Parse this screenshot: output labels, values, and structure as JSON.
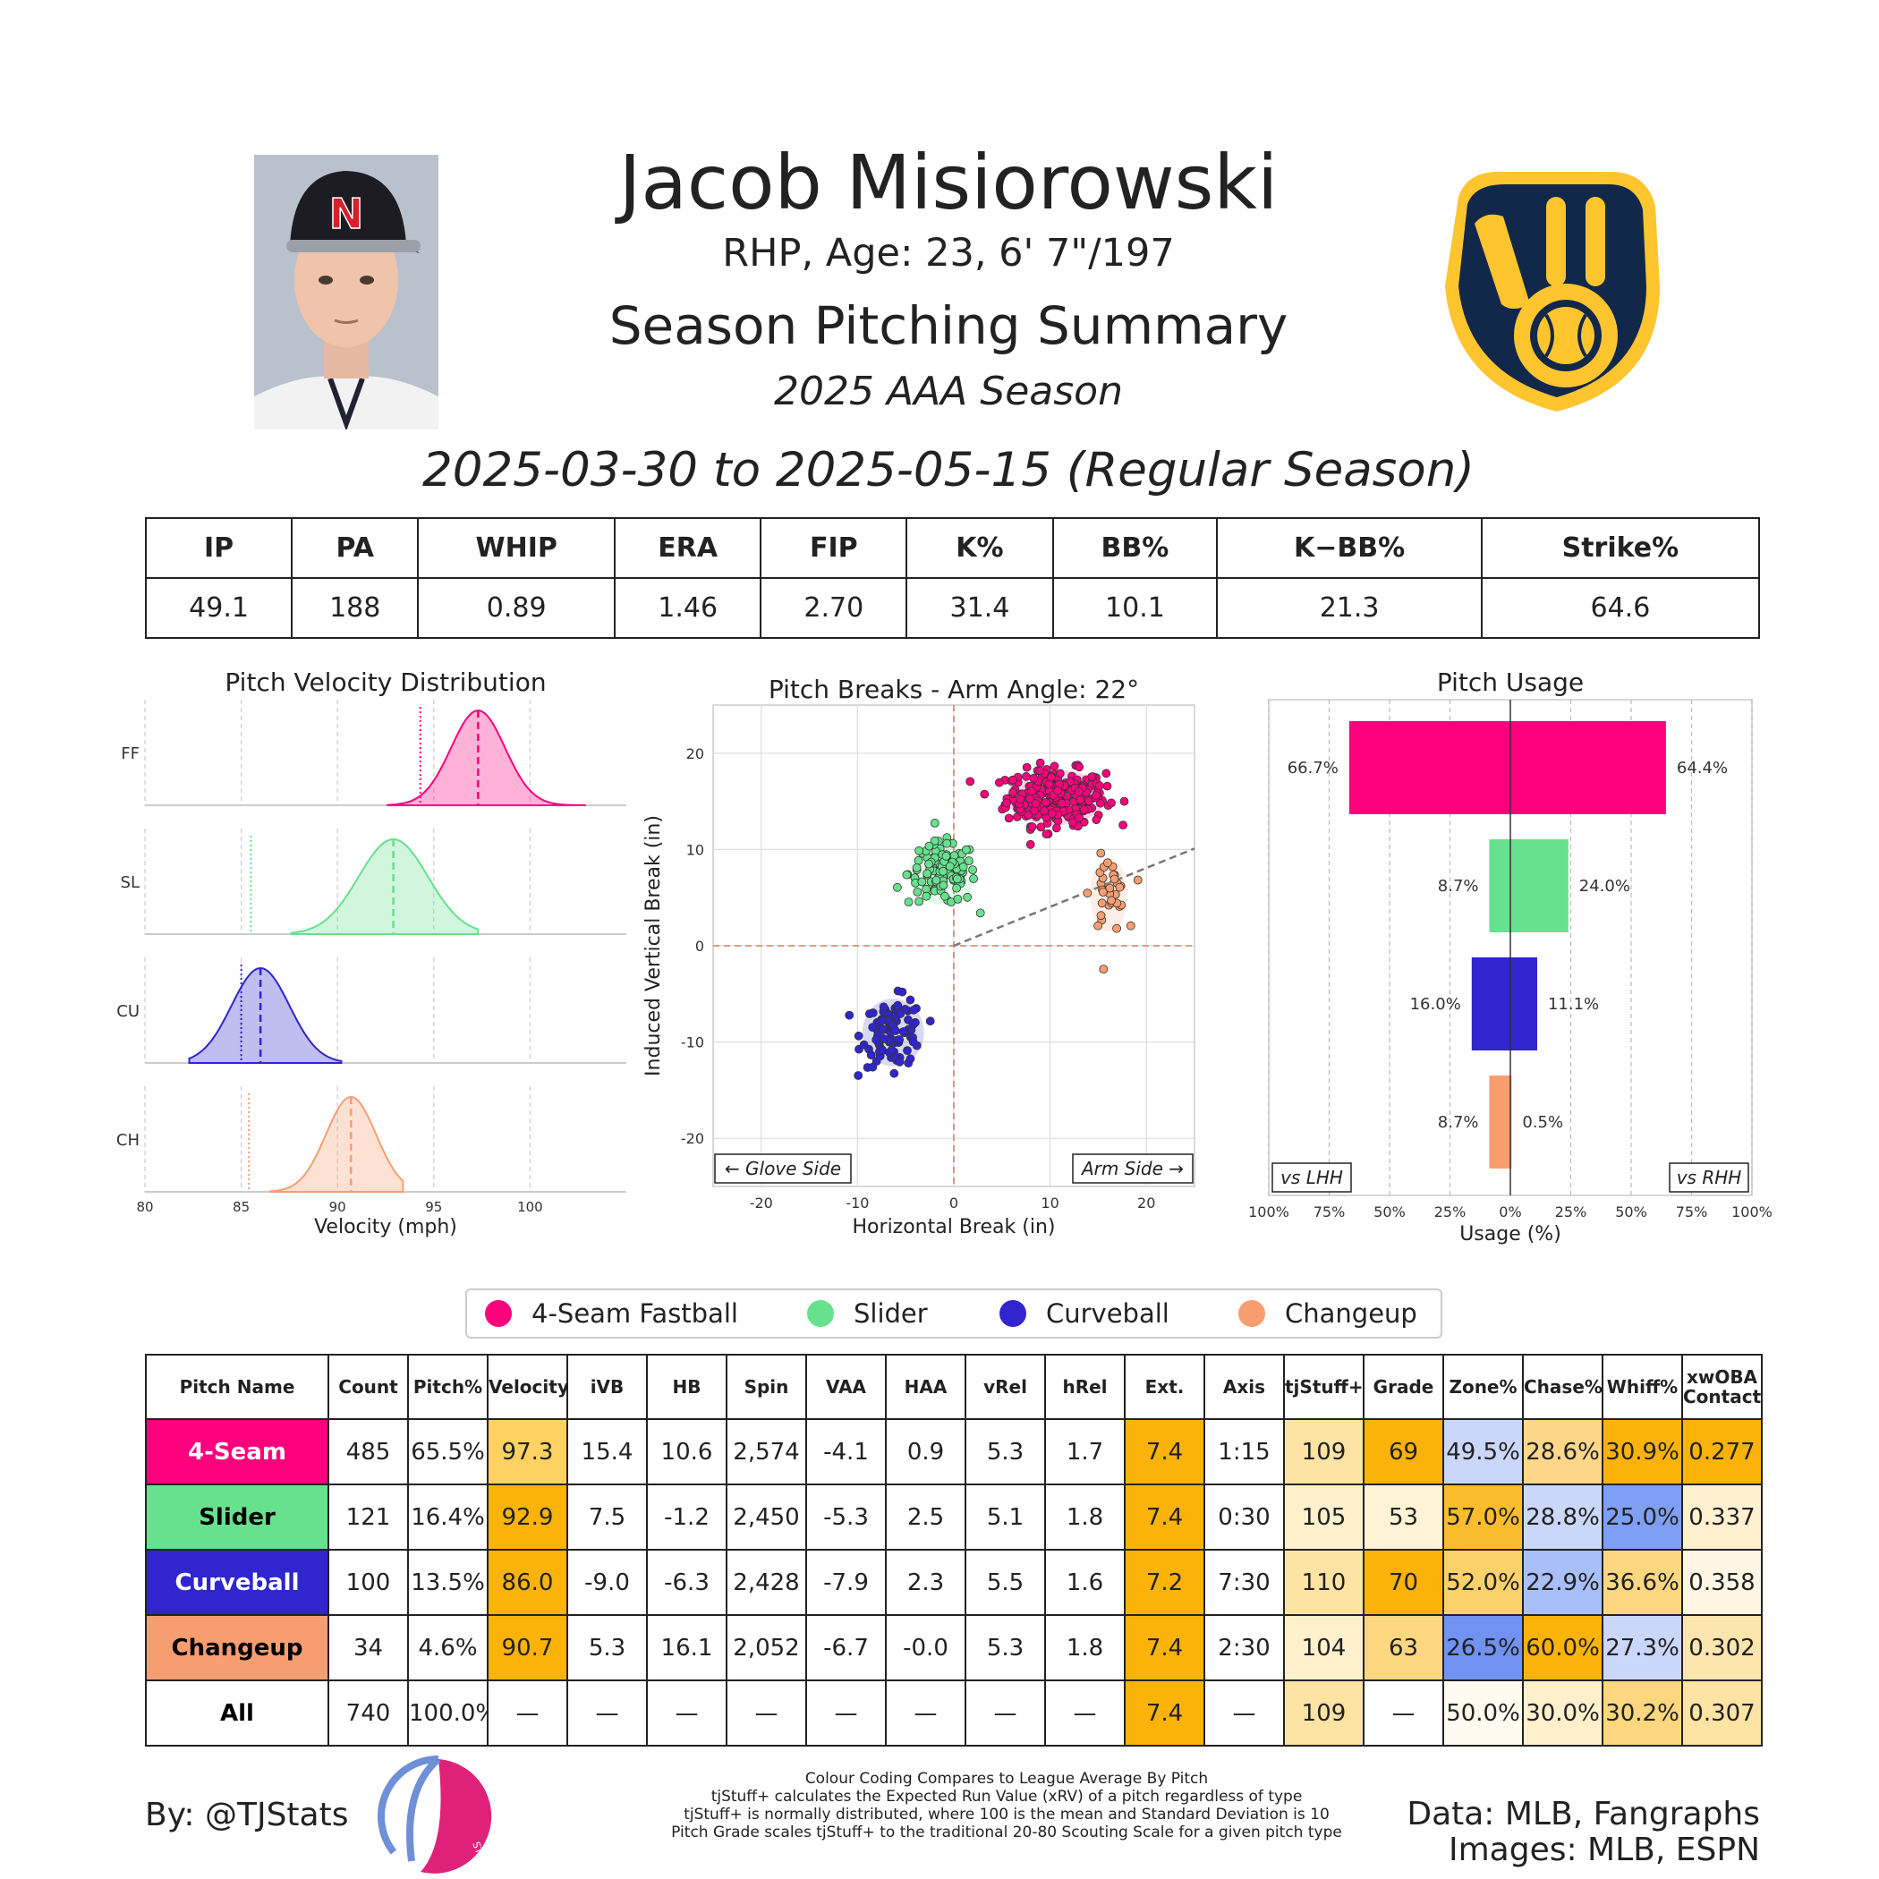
{
  "header": {
    "name": "Jacob Misiorowski",
    "bio": "RHP, Age: 23, 6' 7\"/197",
    "title": "Season Pitching Summary",
    "season": "2025 AAA Season",
    "date_range": "2025-03-30 to 2025-05-15 (Regular Season)",
    "headshot_cap_letter": "N"
  },
  "stats_table": {
    "headers": [
      "IP",
      "PA",
      "WHIP",
      "ERA",
      "FIP",
      "K%",
      "BB%",
      "K−BB%",
      "Strike%"
    ],
    "values": [
      "49.1",
      "188",
      "0.89",
      "1.46",
      "2.70",
      "31.4",
      "10.1",
      "21.3",
      "64.6"
    ]
  },
  "colors": {
    "four_seam": "#ff007d",
    "slider": "#67e18d",
    "curveball": "#3025ce",
    "changeup": "#f79e70",
    "brewers_navy": "#12284b",
    "brewers_gold": "#ffc52f",
    "grid": "#cccccc"
  },
  "legend": [
    "4-Seam Fastball",
    "Slider",
    "Curveball",
    "Changeup"
  ],
  "chart_data": [
    {
      "type": "area",
      "title": "Pitch Velocity Distribution",
      "xlabel": "Velocity (mph)",
      "xlim": [
        80,
        105
      ],
      "xticks": [
        80,
        85,
        90,
        95,
        100
      ],
      "series": [
        {
          "name": "FF",
          "color": "#ff007d",
          "mean": 97.3,
          "league_mean": 94.3,
          "sd": 1.4,
          "range": [
            92.6,
            102.9
          ]
        },
        {
          "name": "SL",
          "color": "#67e18d",
          "mean": 92.9,
          "league_mean": 85.5,
          "sd": 1.8,
          "range": [
            87.6,
            97.3
          ]
        },
        {
          "name": "CU",
          "color": "#3025ce",
          "mean": 86.0,
          "league_mean": 85.0,
          "sd": 1.5,
          "range": [
            82.3,
            90.2
          ]
        },
        {
          "name": "CH",
          "color": "#f79e70",
          "mean": 90.7,
          "league_mean": 85.4,
          "sd": 1.3,
          "range": [
            86.5,
            93.4
          ]
        }
      ]
    },
    {
      "type": "scatter",
      "title": "Pitch Breaks - Arm Angle: 22°",
      "xlabel": "Horizontal Break (in)",
      "ylabel": "Induced Vertical Break (in)",
      "xlim": [
        -25,
        25
      ],
      "ylim": [
        -25,
        25
      ],
      "xticks": [
        -20,
        -10,
        0,
        10,
        20
      ],
      "yticks": [
        20,
        10,
        0,
        -10,
        -20
      ],
      "arm_angle_deg": 22,
      "annotations": [
        "← Glove Side",
        "Arm Side →"
      ],
      "series": [
        {
          "name": "4-Seam Fastball",
          "color": "#ff007d",
          "center": [
            10.6,
            15.4
          ],
          "spread": [
            3.2,
            1.8
          ],
          "count": 485
        },
        {
          "name": "Slider",
          "color": "#67e18d",
          "center": [
            -1.2,
            7.5
          ],
          "spread": [
            2.2,
            2.0
          ],
          "count": 121
        },
        {
          "name": "Curveball",
          "color": "#3025ce",
          "center": [
            -6.3,
            -9.0
          ],
          "spread": [
            2.0,
            2.2
          ],
          "count": 100
        },
        {
          "name": "Changeup",
          "color": "#f79e70",
          "center": [
            16.1,
            5.3
          ],
          "spread": [
            1.2,
            2.4
          ],
          "count": 34
        }
      ]
    },
    {
      "type": "bar",
      "title": "Pitch Usage",
      "xlabel": "Usage (%)",
      "xlim": [
        -100,
        100
      ],
      "xticks": [
        "100%",
        "75%",
        "50%",
        "25%",
        "0%",
        "25%",
        "50%",
        "75%",
        "100%"
      ],
      "annotations": [
        "vs LHH",
        "vs RHH"
      ],
      "categories": [
        "4-Seam Fastball",
        "Slider",
        "Curveball",
        "Changeup"
      ],
      "series": [
        {
          "name": "vs LHH",
          "values": [
            66.7,
            8.7,
            16.0,
            8.7
          ],
          "labels": [
            "66.7%",
            "8.7%",
            "16.0%",
            "8.7%"
          ]
        },
        {
          "name": "vs RHH",
          "values": [
            64.4,
            24.0,
            11.1,
            0.5
          ],
          "labels": [
            "64.4%",
            "24.0%",
            "11.1%",
            "0.5%"
          ]
        }
      ]
    },
    {
      "type": "table",
      "columns": [
        "Pitch Name",
        "Count",
        "Pitch%",
        "Velocity",
        "iVB",
        "HB",
        "Spin",
        "VAA",
        "HAA",
        "vRel",
        "hRel",
        "Ext.",
        "Axis",
        "tjStuff+",
        "Grade",
        "Zone%",
        "Chase%",
        "Whiff%",
        "xwOBA\nContact"
      ],
      "rows": [
        {
          "name": "4-Seam",
          "name_bg": "#ff007d",
          "name_fg": "#ffffff",
          "cells": [
            "485",
            "65.5%",
            "97.3",
            "15.4",
            "10.6",
            "2,574",
            "-4.1",
            "0.9",
            "5.3",
            "1.7",
            "7.4",
            "1:15",
            "109",
            "69",
            "49.5%",
            "28.6%",
            "30.9%",
            "0.277"
          ],
          "bg": [
            "#ffffff",
            "#ffffff",
            "#fdd262",
            "#ffffff",
            "#ffffff",
            "#ffffff",
            "#ffffff",
            "#ffffff",
            "#ffffff",
            "#ffffff",
            "#fbb30a",
            "#ffffff",
            "#fde3a4",
            "#fbb30a",
            "#cbd7fa",
            "#fed78a",
            "#fbb30a",
            "#fbb30a"
          ]
        },
        {
          "name": "Slider",
          "name_bg": "#67e18d",
          "name_fg": "#000000",
          "cells": [
            "121",
            "16.4%",
            "92.9",
            "7.5",
            "-1.2",
            "2,450",
            "-5.3",
            "2.5",
            "5.1",
            "1.8",
            "7.4",
            "0:30",
            "105",
            "53",
            "57.0%",
            "28.8%",
            "25.0%",
            "0.337"
          ],
          "bg": [
            "#ffffff",
            "#ffffff",
            "#fbb30a",
            "#ffffff",
            "#ffffff",
            "#ffffff",
            "#ffffff",
            "#ffffff",
            "#ffffff",
            "#ffffff",
            "#fbb30a",
            "#ffffff",
            "#fff0cc",
            "#fff3d6",
            "#fbbd2d",
            "#cbd7fa",
            "#7f9ff5",
            "#fff0cf"
          ]
        },
        {
          "name": "Curveball",
          "name_bg": "#3025ce",
          "name_fg": "#ffffff",
          "cells": [
            "100",
            "13.5%",
            "86.0",
            "-9.0",
            "-6.3",
            "2,428",
            "-7.9",
            "2.3",
            "5.5",
            "1.6",
            "7.2",
            "7:30",
            "110",
            "70",
            "52.0%",
            "22.9%",
            "36.6%",
            "0.358"
          ],
          "bg": [
            "#ffffff",
            "#ffffff",
            "#fbb30a",
            "#ffffff",
            "#ffffff",
            "#ffffff",
            "#ffffff",
            "#ffffff",
            "#ffffff",
            "#ffffff",
            "#fbb30a",
            "#ffffff",
            "#fde3a4",
            "#fbb30a",
            "#fdd16a",
            "#a9bff8",
            "#fdd77f",
            "#fff6e3"
          ]
        },
        {
          "name": "Changeup",
          "name_bg": "#f79e70",
          "name_fg": "#000000",
          "cells": [
            "34",
            "4.6%",
            "90.7",
            "5.3",
            "16.1",
            "2,052",
            "-6.7",
            "-0.0",
            "5.3",
            "1.8",
            "7.4",
            "2:30",
            "104",
            "63",
            "26.5%",
            "60.0%",
            "27.3%",
            "0.302"
          ],
          "bg": [
            "#ffffff",
            "#ffffff",
            "#fbb30a",
            "#ffffff",
            "#ffffff",
            "#ffffff",
            "#ffffff",
            "#ffffff",
            "#ffffff",
            "#ffffff",
            "#fbb30a",
            "#ffffff",
            "#fff0cc",
            "#fdd77f",
            "#6f92f3",
            "#fbb30a",
            "#cbd7fa",
            "#fde5ae"
          ]
        },
        {
          "name": "All",
          "name_bg": "#ffffff",
          "name_fg": "#000000",
          "cells": [
            "740",
            "100.0%",
            "—",
            "—",
            "—",
            "—",
            "—",
            "—",
            "—",
            "—",
            "7.4",
            "—",
            "109",
            "—",
            "50.0%",
            "30.0%",
            "30.2%",
            "0.307"
          ],
          "bg": [
            "#ffffff",
            "#ffffff",
            "#ffffff",
            "#ffffff",
            "#ffffff",
            "#ffffff",
            "#ffffff",
            "#ffffff",
            "#ffffff",
            "#ffffff",
            "#fbb30a",
            "#ffffff",
            "#fde3a4",
            "#ffffff",
            "#fffbf0",
            "#fff0cc",
            "#fdd77f",
            "#fde3a4"
          ]
        }
      ]
    }
  ],
  "footer": {
    "byline": "By: @TJStats",
    "logo_text": "STATS",
    "notes": [
      "Colour Coding Compares to League Average By Pitch",
      "tjStuff+ calculates the Expected Run Value (xRV) of a pitch regardless of type",
      "tjStuff+ is normally distributed, where 100 is the mean and Standard Deviation is 10",
      "Pitch Grade scales tjStuff+ to the traditional 20-80 Scouting Scale for a given pitch type"
    ],
    "data_sources": [
      "Data: MLB, Fangraphs",
      "Images: MLB, ESPN"
    ]
  }
}
